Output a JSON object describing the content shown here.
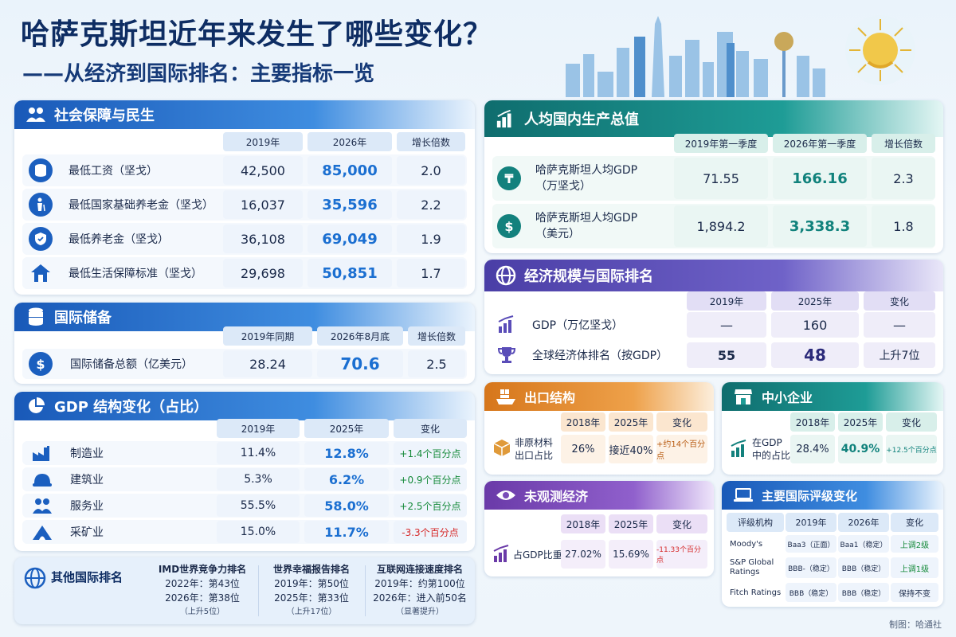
{
  "header": {
    "title": "哈萨克斯坦近年来发生了哪些变化？",
    "subtitle": "——从经济到国际排名：主要指标一览"
  },
  "social": {
    "title": "社会保障与民生",
    "cols": [
      "2019年",
      "2026年",
      "增长倍数"
    ],
    "rows": [
      {
        "label": "最低工资（坚戈）",
        "v2019": "42,500",
        "v2026": "85,000",
        "growth": "2.0",
        "icon": "coins-icon"
      },
      {
        "label": "最低国家基础养老金（坚戈）",
        "v2019": "16,037",
        "v2026": "35,596",
        "growth": "2.2",
        "icon": "elderly-icon"
      },
      {
        "label": "最低养老金（坚戈）",
        "v2019": "36,108",
        "v2026": "69,049",
        "growth": "1.9",
        "icon": "shield-icon"
      },
      {
        "label": "最低生活保障标准（坚戈）",
        "v2019": "29,698",
        "v2026": "50,851",
        "growth": "1.7",
        "icon": "house-icon"
      }
    ]
  },
  "reserves": {
    "title": "国际储备",
    "cols": [
      "2019年同期",
      "2026年8月底",
      "增长倍数"
    ],
    "row": {
      "label": "国际储备总额（亿美元）",
      "v2019": "28.24",
      "v2026": "70.6",
      "growth": "2.5"
    }
  },
  "gdp_structure": {
    "title": "GDP 结构变化（占比）",
    "cols": [
      "2019年",
      "2025年",
      "变化"
    ],
    "rows": [
      {
        "label": "制造业",
        "v2019": "11.4%",
        "v2025": "12.8%",
        "change": "+1.4个百分点",
        "icon": "factory-icon"
      },
      {
        "label": "建筑业",
        "v2019": "5.3%",
        "v2025": "6.2%",
        "change": "+0.9个百分点",
        "icon": "helmet-icon"
      },
      {
        "label": "服务业",
        "v2019": "55.5%",
        "v2025": "58.0%",
        "change": "+2.5个百分点",
        "icon": "people-icon"
      },
      {
        "label": "采矿业",
        "v2019": "15.0%",
        "v2025": "11.7%",
        "change": "-3.3个百分点",
        "icon": "mine-icon"
      }
    ]
  },
  "other_rankings": {
    "title": "其他国际排名",
    "items": [
      {
        "name": "IMD世界竞争力排名",
        "line1": "2022年：第43位",
        "line2": "2026年：第38位",
        "note": "（上升5位）"
      },
      {
        "name": "世界幸福报告排名",
        "line1": "2019年：第50位",
        "line2": "2025年：第33位",
        "note": "（上升17位）"
      },
      {
        "name": "互联网连接速度排名",
        "line1": "2019年：约第100位",
        "line2": "2026年：进入前50名",
        "note": "（显著提升）"
      }
    ]
  },
  "gdp_per_capita": {
    "title": "人均国内生产总值",
    "cols": [
      "2019年第一季度",
      "2026年第一季度",
      "增长倍数"
    ],
    "rows": [
      {
        "label1": "哈萨克斯坦人均GDP",
        "label2": "（万坚戈）",
        "v2019": "71.55",
        "v2026": "166.16",
        "growth": "2.3",
        "symbol": "₸"
      },
      {
        "label1": "哈萨克斯坦人均GDP",
        "label2": "（美元）",
        "v2019": "1,894.2",
        "v2026": "3,338.3",
        "growth": "1.8",
        "symbol": "$"
      }
    ]
  },
  "economy": {
    "title": "经济规模与国际排名",
    "cols": [
      "2019年",
      "2025年",
      "变化"
    ],
    "rows": [
      {
        "label": "GDP（万亿坚戈）",
        "v2019": "—",
        "v2025": "160",
        "change": "—"
      },
      {
        "label": "全球经济体排名（按GDP）",
        "v2019": "55",
        "v2025": "48",
        "change": "上升7位"
      }
    ]
  },
  "exports": {
    "title": "出口结构",
    "cols": [
      "2018年",
      "2025年",
      "变化"
    ],
    "label1": "非原材料",
    "label2": "出口占比",
    "v2018": "26%",
    "v2025": "接近40%",
    "change": "+约14个百分点"
  },
  "sme": {
    "title": "中小企业",
    "cols": [
      "2018年",
      "2025年",
      "变化"
    ],
    "label1": "在GDP",
    "label2": "中的占比",
    "v2018": "28.4%",
    "v2025": "40.9%",
    "change": "+12.5个百分点"
  },
  "shadow": {
    "title": "未观测经济",
    "cols": [
      "2018年",
      "2025年",
      "变化"
    ],
    "label": "占GDP比重",
    "v2018": "27.02%",
    "v2025": "15.69%",
    "change": "-11.33个百分点"
  },
  "ratings": {
    "title": "主要国际评级变化",
    "cols": [
      "评级机构",
      "2019年",
      "2026年",
      "变化"
    ],
    "rows": [
      {
        "agency": "Moody's",
        "v2019": "Baa3（正面）",
        "v2026": "Baa1（稳定）",
        "change": "上调2级"
      },
      {
        "agency": "S&P Global Ratings",
        "v2019": "BBB-（稳定）",
        "v2026": "BBB（稳定）",
        "change": "上调1级"
      },
      {
        "agency": "Fitch Ratings",
        "v2019": "BBB（稳定）",
        "v2026": "BBB（稳定）",
        "change": "保持不变"
      }
    ]
  },
  "footer": "制图：哈通社",
  "colors": {
    "primary_blue": "#1b5fbf",
    "teal": "#13817d",
    "positive": "#158a3a",
    "negative": "#d62a2a"
  }
}
